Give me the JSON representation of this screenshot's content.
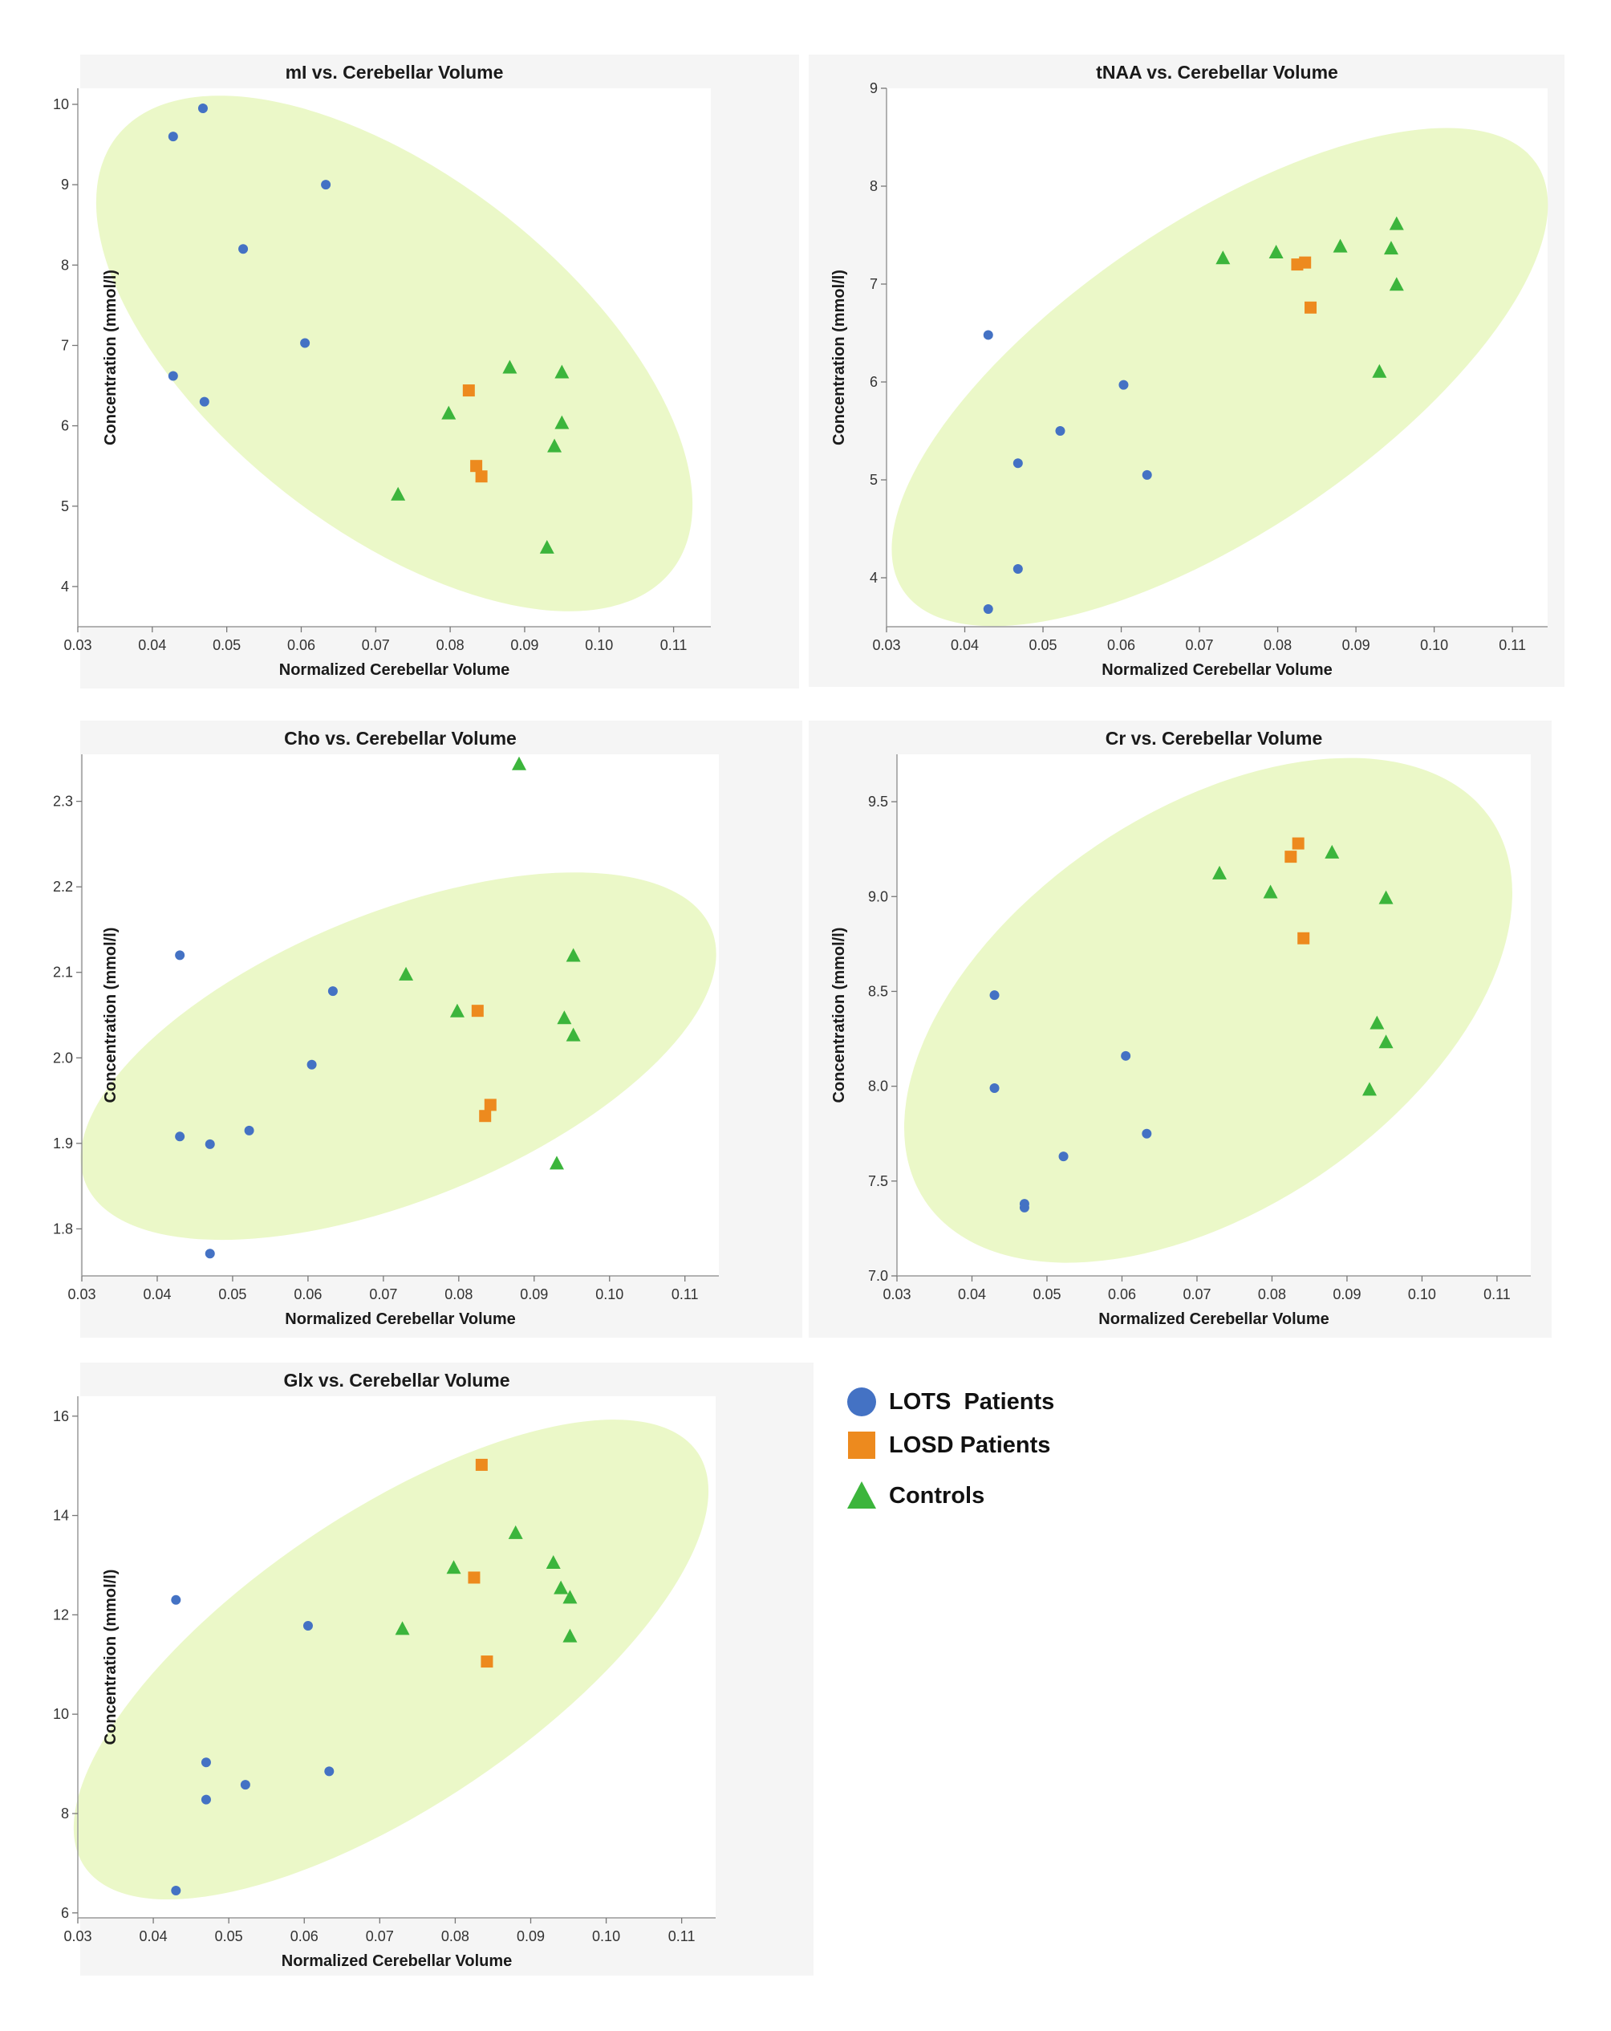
{
  "colors": {
    "lots": "#4472c4",
    "losd": "#ed8a1e",
    "controls": "#3cb53c",
    "ellipse": "#ebf8c8",
    "panel_bg": "#f5f5f5"
  },
  "legend": {
    "items": [
      {
        "label": "LOTS  Patients",
        "shape": "circle",
        "color": "#4472c4"
      },
      {
        "label": "LOSD Patients",
        "shape": "square",
        "color": "#ed8a1e"
      },
      {
        "label": "Controls",
        "shape": "triangle",
        "color": "#3cb53c"
      }
    ]
  },
  "chart_data": [
    {
      "type": "scatter",
      "title": "mI vs. Cerebellar Volume",
      "xlabel": "Normalized Cerebellar Volume",
      "ylabel": "Concentration (mmol/l)",
      "xlim": [
        0.03,
        0.115
      ],
      "ylim": [
        3.5,
        10.2
      ],
      "xticks": [
        "0.03",
        "0.04",
        "0.05",
        "0.06",
        "0.07",
        "0.08",
        "0.09",
        "0.10",
        "0.11"
      ],
      "yticks": [
        "4",
        "5",
        "6",
        "7",
        "8",
        "9",
        "10"
      ],
      "ellipse": {
        "cx": 0.0725,
        "cy": 6.9,
        "rx": 0.0473,
        "ry": 2.2,
        "angle_deg": 38
      },
      "series": [
        {
          "name": "LOTS Patients",
          "marker": "circle",
          "points": [
            [
              0.0428,
              9.6
            ],
            [
              0.0468,
              9.95
            ],
            [
              0.0633,
              9.0
            ],
            [
              0.0522,
              8.2
            ],
            [
              0.0605,
              7.03
            ],
            [
              0.0428,
              6.62
            ],
            [
              0.047,
              6.3
            ]
          ]
        },
        {
          "name": "LOSD Patients",
          "marker": "square",
          "points": [
            [
              0.0825,
              6.44
            ],
            [
              0.0835,
              5.5
            ],
            [
              0.0842,
              5.37
            ]
          ]
        },
        {
          "name": "Controls",
          "marker": "triangle",
          "points": [
            [
              0.088,
              6.72
            ],
            [
              0.095,
              6.66
            ],
            [
              0.0798,
              6.15
            ],
            [
              0.095,
              6.03
            ],
            [
              0.094,
              5.74
            ],
            [
              0.073,
              5.14
            ],
            [
              0.093,
              4.48
            ]
          ]
        }
      ]
    },
    {
      "type": "scatter",
      "title": "tNAA vs. Cerebellar Volume",
      "xlabel": "Normalized Cerebellar Volume",
      "ylabel": "Concentration (mmol/l)",
      "xlim": [
        0.03,
        0.1145
      ],
      "ylim": [
        3.5,
        9.0
      ],
      "xticks": [
        "0.03",
        "0.04",
        "0.05",
        "0.06",
        "0.07",
        "0.08",
        "0.09",
        "0.10",
        "0.11"
      ],
      "yticks": [
        "4",
        "5",
        "6",
        "7",
        "8",
        "9"
      ],
      "ellipse": {
        "cx": 0.0726,
        "cy": 6.05,
        "rx": 0.0488,
        "ry": 1.58,
        "angle_deg": -34
      },
      "series": [
        {
          "name": "LOTS Patients",
          "marker": "circle",
          "points": [
            [
              0.043,
              6.48
            ],
            [
              0.0603,
              5.97
            ],
            [
              0.0522,
              5.5
            ],
            [
              0.0468,
              5.17
            ],
            [
              0.0633,
              5.05
            ],
            [
              0.0468,
              4.09
            ],
            [
              0.043,
              3.68
            ]
          ]
        },
        {
          "name": "LOSD Patients",
          "marker": "square",
          "points": [
            [
              0.0825,
              7.2
            ],
            [
              0.0835,
              7.22
            ],
            [
              0.0842,
              6.76
            ]
          ]
        },
        {
          "name": "Controls",
          "marker": "triangle",
          "points": [
            [
              0.073,
              7.26
            ],
            [
              0.0798,
              7.32
            ],
            [
              0.088,
              7.38
            ],
            [
              0.0945,
              7.36
            ],
            [
              0.0952,
              7.61
            ],
            [
              0.0952,
              6.99
            ],
            [
              0.093,
              6.1
            ]
          ]
        }
      ]
    },
    {
      "type": "scatter",
      "title": "Cho vs. Cerebellar Volume",
      "xlabel": "Normalized Cerebellar Volume",
      "ylabel": "Concentration (mmol/l)",
      "xlim": [
        0.03,
        0.1145
      ],
      "ylim": [
        1.745,
        2.355
      ],
      "xticks": [
        "0.03",
        "0.04",
        "0.05",
        "0.06",
        "0.07",
        "0.08",
        "0.09",
        "0.10",
        "0.11"
      ],
      "yticks": [
        "1.8",
        "1.9",
        "2.0",
        "2.1",
        "2.2",
        "2.3"
      ],
      "ellipse": {
        "cx": 0.072,
        "cy": 2.002,
        "rx": 0.0448,
        "ry": 0.168,
        "angle_deg": -22
      },
      "series": [
        {
          "name": "LOTS Patients",
          "marker": "circle",
          "points": [
            [
              0.043,
              2.12
            ],
            [
              0.0633,
              2.078
            ],
            [
              0.0605,
              1.992
            ],
            [
              0.0522,
              1.915
            ],
            [
              0.043,
              1.908
            ],
            [
              0.047,
              1.899
            ],
            [
              0.047,
              1.771
            ]
          ]
        },
        {
          "name": "LOSD Patients",
          "marker": "square",
          "points": [
            [
              0.0825,
              2.055
            ],
            [
              0.0842,
              1.945
            ],
            [
              0.0835,
              1.932
            ]
          ]
        },
        {
          "name": "Controls",
          "marker": "triangle",
          "points": [
            [
              0.088,
              2.343
            ],
            [
              0.073,
              2.097
            ],
            [
              0.0952,
              2.119
            ],
            [
              0.0798,
              2.054
            ],
            [
              0.094,
              2.046
            ],
            [
              0.0952,
              2.026
            ],
            [
              0.093,
              1.876
            ]
          ]
        }
      ]
    },
    {
      "type": "scatter",
      "title": "Cr vs. Cerebellar Volume",
      "xlabel": "Normalized Cerebellar Volume",
      "ylabel": "Concentration (mmol/l)",
      "xlim": [
        0.03,
        0.1145
      ],
      "ylim": [
        7.0,
        9.75
      ],
      "xticks": [
        "0.03",
        "0.04",
        "0.05",
        "0.06",
        "0.07",
        "0.08",
        "0.09",
        "0.10",
        "0.11"
      ],
      "yticks": [
        "7.0",
        "7.5",
        "8.0",
        "8.5",
        "9.0",
        "9.5"
      ],
      "ellipse": {
        "cx": 0.0715,
        "cy": 8.4,
        "rx": 0.0455,
        "ry": 1.05,
        "angle_deg": -34
      },
      "series": [
        {
          "name": "LOTS Patients",
          "marker": "circle",
          "points": [
            [
              0.043,
              8.48
            ],
            [
              0.043,
              7.99
            ],
            [
              0.0605,
              8.16
            ],
            [
              0.0633,
              7.75
            ],
            [
              0.0522,
              7.63
            ],
            [
              0.047,
              7.38
            ],
            [
              0.047,
              7.36
            ]
          ]
        },
        {
          "name": "LOSD Patients",
          "marker": "square",
          "points": [
            [
              0.0835,
              9.28
            ],
            [
              0.0825,
              9.21
            ],
            [
              0.0842,
              8.78
            ]
          ]
        },
        {
          "name": "Controls",
          "marker": "triangle",
          "points": [
            [
              0.073,
              9.12
            ],
            [
              0.0798,
              9.02
            ],
            [
              0.088,
              9.23
            ],
            [
              0.0952,
              8.99
            ],
            [
              0.094,
              8.33
            ],
            [
              0.0952,
              8.23
            ],
            [
              0.093,
              7.98
            ]
          ]
        }
      ]
    },
    {
      "type": "scatter",
      "title": "Glx vs. Cerebellar Volume",
      "xlabel": "Normalized Cerebellar Volume",
      "ylabel": "Concentration (mmol/l)",
      "xlim": [
        0.03,
        0.1145
      ],
      "ylim": [
        5.9,
        16.4
      ],
      "xticks": [
        "0.03",
        "0.04",
        "0.05",
        "0.06",
        "0.07",
        "0.08",
        "0.09",
        "0.10",
        "0.11"
      ],
      "yticks": [
        "6",
        "8",
        "10",
        "12",
        "14",
        "16"
      ],
      "ellipse": {
        "cx": 0.0715,
        "cy": 11.1,
        "rx": 0.049,
        "ry": 2.95,
        "angle_deg": -34
      },
      "series": [
        {
          "name": "LOTS Patients",
          "marker": "circle",
          "points": [
            [
              0.043,
              12.3
            ],
            [
              0.0605,
              11.78
            ],
            [
              0.047,
              9.03
            ],
            [
              0.0633,
              8.85
            ],
            [
              0.0522,
              8.58
            ],
            [
              0.047,
              8.28
            ],
            [
              0.043,
              6.45
            ]
          ]
        },
        {
          "name": "LOSD Patients",
          "marker": "square",
          "points": [
            [
              0.0835,
              15.02
            ],
            [
              0.0825,
              12.75
            ],
            [
              0.0842,
              11.06
            ]
          ]
        },
        {
          "name": "Controls",
          "marker": "triangle",
          "points": [
            [
              0.088,
              13.64
            ],
            [
              0.093,
              13.04
            ],
            [
              0.0798,
              12.94
            ],
            [
              0.094,
              12.53
            ],
            [
              0.0952,
              12.34
            ],
            [
              0.073,
              11.71
            ],
            [
              0.0952,
              11.56
            ]
          ]
        }
      ]
    }
  ]
}
